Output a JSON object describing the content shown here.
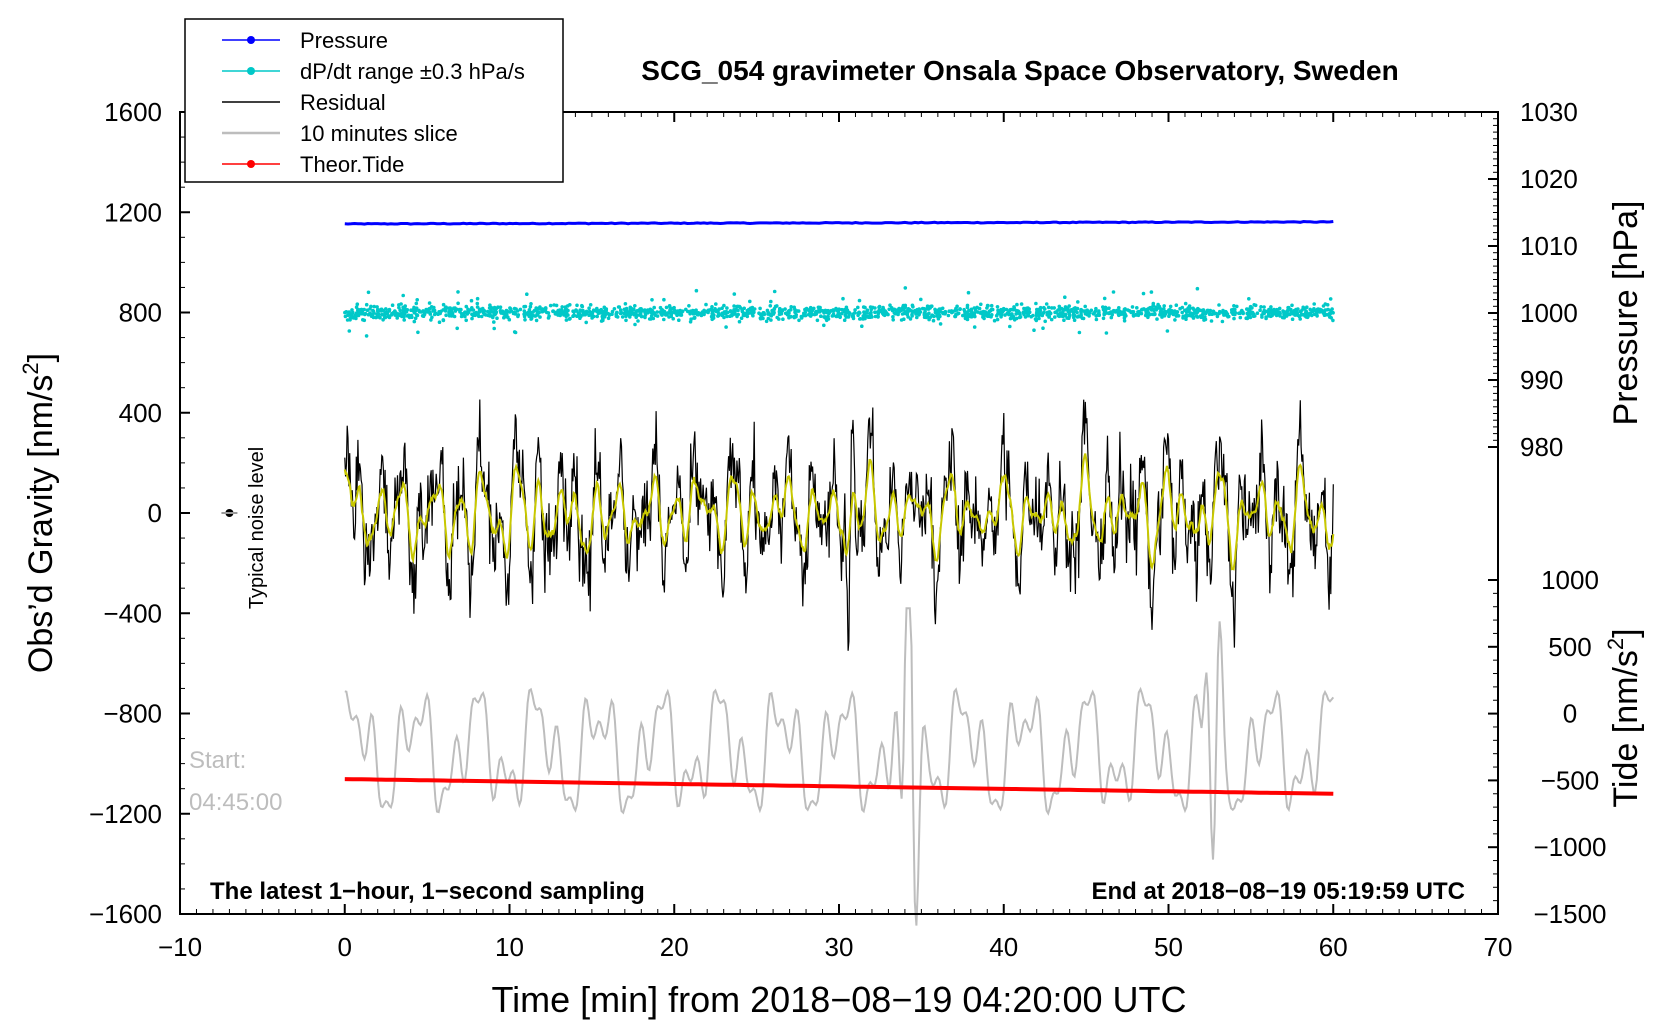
{
  "chart_data": {
    "type": "line",
    "title": "SCG_054 gravimeter Onsala Space Observatory, Sweden",
    "xlabel": "Time [min] from 2018−08−19 04:20:00 UTC",
    "ylabel_left": "Obs’d Gravity [nm/s",
    "ylabel_left_sup": "2",
    "ylabel_left_end": "]",
    "ylabel_right_pressure": "Pressure [hPa]",
    "ylabel_right_tide": "Tide [nm/s",
    "ylabel_right_tide_sup": "2",
    "ylabel_right_tide_end": "]",
    "xlim": [
      -10,
      70
    ],
    "ylim_left": [
      -1600,
      1600
    ],
    "ylim_pressure": [
      980,
      1030
    ],
    "ylim_tide": [
      -1500,
      1000
    ],
    "x_ticks": [
      "−10",
      "0",
      "10",
      "20",
      "30",
      "40",
      "50",
      "60",
      "70"
    ],
    "y_left_ticks": [
      "1600",
      "1200",
      "800",
      "400",
      "0",
      "−400",
      "−800",
      "−1200",
      "−1600"
    ],
    "y_pressure_ticks": [
      "1030",
      "1020",
      "1010",
      "1000",
      "990",
      "980"
    ],
    "y_tide_ticks": [
      "1000",
      "500",
      "0",
      "−500",
      "−1000",
      "−1500"
    ],
    "legend": [
      {
        "label": "Pressure",
        "color": "#0000ff",
        "marker": "dot"
      },
      {
        "label": "dP/dt range ±0.3 hPa/s",
        "color": "#00c8c8",
        "marker": "dot"
      },
      {
        "label": "Residual",
        "color": "#000000",
        "marker": "none"
      },
      {
        "label": "10 minutes slice",
        "color": "#bdbdbd",
        "marker": "none"
      },
      {
        "label": "Theor.Tide",
        "color": "#ff0000",
        "marker": "dot"
      }
    ],
    "annotations": {
      "noise_label": "Typical noise level",
      "noise_point": {
        "x": -7,
        "y": 0
      },
      "start_label_1": "Start:",
      "start_label_2": "04:45:00",
      "bottom_left": "The latest 1−hour, 1−second sampling",
      "bottom_right": "End at 2018−08−19 05:19:59 UTC"
    },
    "series": [
      {
        "name": "Pressure",
        "axis": "pressure",
        "color": "#0000ff",
        "x_range": [
          0,
          60
        ],
        "start": 1013.3,
        "end": 1013.6
      },
      {
        "name": "dP/dt",
        "axis": "left",
        "color": "#00c8c8",
        "x_range": [
          0,
          60
        ],
        "center": 800,
        "spread": 60
      },
      {
        "name": "Residual",
        "axis": "left",
        "color": "#000000",
        "x_range": [
          0,
          60
        ],
        "amplitude": 320
      },
      {
        "name": "Residual smoothed",
        "axis": "left",
        "color": "#c8c800",
        "x_range": [
          0,
          60
        ],
        "amplitude": 220
      },
      {
        "name": "10 minutes slice",
        "axis": "left",
        "color": "#bdbdbd",
        "x_range": [
          0,
          60
        ],
        "center": -950,
        "amplitude": 250
      },
      {
        "name": "Theor.Tide",
        "axis": "tide",
        "color": "#ff0000",
        "x_range": [
          0,
          60
        ],
        "start": -490,
        "end": -600
      }
    ]
  }
}
